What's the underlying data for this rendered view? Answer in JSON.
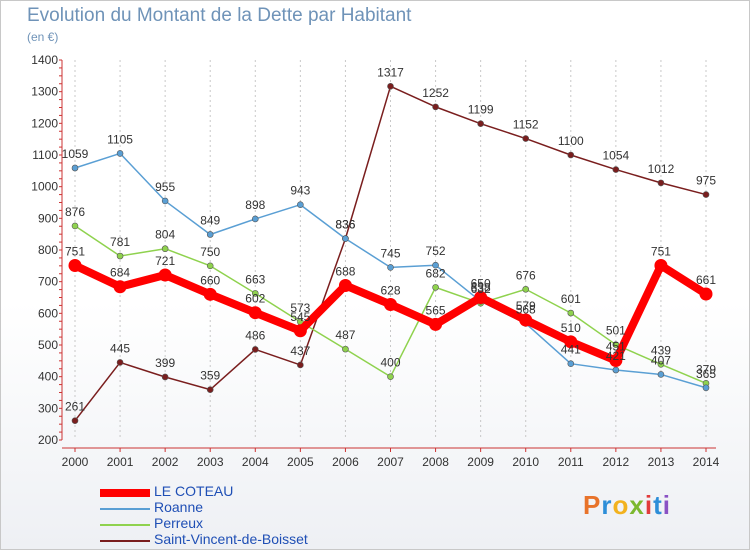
{
  "header": {
    "title": "Evolution du Montant de la Dette par Habitant",
    "unit": "(en €)"
  },
  "logo": {
    "text": "Proxiti",
    "colors": [
      "#e8732a",
      "#2d8ed8",
      "#f2b21e",
      "#7cb82f",
      "#e23b3b",
      "#2d8ed8",
      "#8a52c4"
    ]
  },
  "chart_data": {
    "type": "line",
    "title": "Evolution du Montant de la Dette par Habitant",
    "ylabel": "(en €)",
    "xlabel": "",
    "x": [
      "2000",
      "2001",
      "2002",
      "2003",
      "2004",
      "2005",
      "2006",
      "2007",
      "2008",
      "2009",
      "2010",
      "2011",
      "2012",
      "2013",
      "2014"
    ],
    "ylim": [
      200,
      1400
    ],
    "yticks": [
      200,
      300,
      400,
      500,
      600,
      700,
      800,
      900,
      1000,
      1100,
      1200,
      1300,
      1400
    ],
    "grid": "vertical dashed",
    "legend": "bottom-left",
    "series": [
      {
        "name": "LE COTEAU",
        "color": "#ff0000",
        "values": [
          751,
          684,
          721,
          660,
          602,
          545,
          688,
          628,
          565,
          650,
          579,
          510,
          451,
          751,
          661
        ]
      },
      {
        "name": "Roanne",
        "color": "#5a9fd4",
        "values": [
          1059,
          1105,
          955,
          849,
          898,
          943,
          836,
          745,
          752,
          638,
          568,
          441,
          421,
          407,
          365
        ]
      },
      {
        "name": "Perreux",
        "color": "#8fd24e",
        "values": [
          876,
          781,
          804,
          750,
          663,
          573,
          487,
          400,
          682,
          632,
          676,
          601,
          501,
          439,
          379
        ]
      },
      {
        "name": "Saint-Vincent-de-Boisset",
        "color": "#7a1e1e",
        "values": [
          261,
          445,
          399,
          359,
          486,
          437,
          836,
          1317,
          1252,
          1199,
          1152,
          1100,
          1054,
          1012,
          975
        ]
      }
    ]
  }
}
